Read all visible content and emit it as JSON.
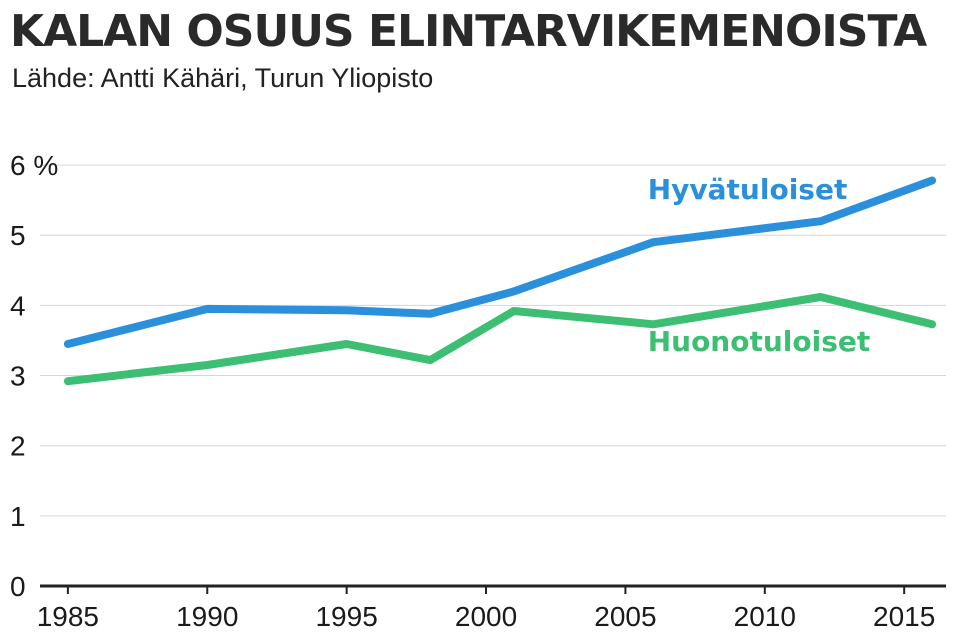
{
  "title": "KALAN OSUUS ELINTARVIKEMENOISTA",
  "subtitle": "Lähde: Antti Kähäri, Turun Yliopisto",
  "chart_data": {
    "type": "line",
    "title": "KALAN OSUUS ELINTARVIKEMENOISTA",
    "subtitle": "Lähde: Antti Kähäri, Turun Yliopisto",
    "xlabel": "",
    "ylabel": "",
    "xlim": [
      1984,
      2016.5
    ],
    "ylim": [
      0,
      6.5
    ],
    "x_ticks": [
      1985,
      1990,
      1995,
      2000,
      2005,
      2010,
      2015
    ],
    "x_tick_labels": [
      "1985",
      "1990",
      "1995",
      "2000",
      "2005",
      "2010",
      "2015"
    ],
    "y_ticks": [
      0,
      1,
      2,
      3,
      4,
      5,
      6
    ],
    "y_tick_labels": [
      "0",
      "1",
      "2",
      "3",
      "4",
      "5",
      "6 %"
    ],
    "grid": true,
    "series": [
      {
        "name": "Hyvätuloiset",
        "color": "#2a90db",
        "x": [
          1985,
          1990,
          1995,
          1998,
          2001,
          2006,
          2012,
          2016
        ],
        "y": [
          3.45,
          3.95,
          3.93,
          3.88,
          4.2,
          4.9,
          5.2,
          5.78
        ]
      },
      {
        "name": "Huonotuloiset",
        "color": "#3dbf73",
        "x": [
          1985,
          1990,
          1995,
          1998,
          2001,
          2006,
          2012,
          2016
        ],
        "y": [
          2.92,
          3.15,
          3.45,
          3.22,
          3.92,
          3.73,
          4.12,
          3.73
        ]
      }
    ]
  }
}
